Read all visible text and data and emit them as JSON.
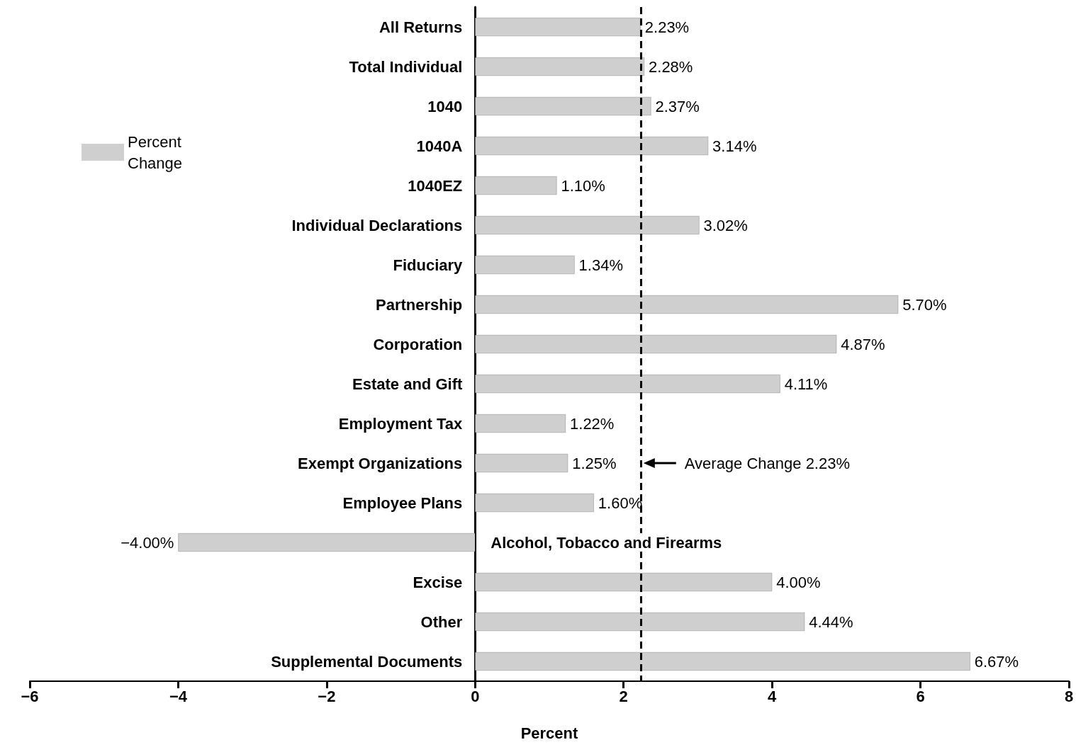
{
  "chart_data": {
    "type": "bar",
    "orientation": "horizontal",
    "xlabel": "Percent",
    "categories": [
      "All Returns",
      "Total Individual",
      "1040",
      "1040A",
      "1040EZ",
      "Individual Declarations",
      "Fiduciary",
      "Partnership",
      "Corporation",
      "Estate and Gift",
      "Employment Tax",
      "Exempt Organizations",
      "Employee Plans",
      "Alcohol, Tobacco and Firearms",
      "Excise",
      "Other",
      "Supplemental Documents"
    ],
    "series": [
      {
        "name": "Percent Change",
        "color": "#cfcfcf",
        "values": [
          2.23,
          2.28,
          2.37,
          3.14,
          1.1,
          3.02,
          1.34,
          5.7,
          4.87,
          4.11,
          1.22,
          1.25,
          1.6,
          -4.0,
          4.0,
          4.44,
          6.67
        ],
        "value_labels": [
          "2.23%",
          "2.28%",
          "2.37%",
          "3.14%",
          "1.10%",
          "3.02%",
          "1.34%",
          "5.70%",
          "4.87%",
          "4.11%",
          "1.22%",
          "1.25%",
          "1.60%",
          "−4.00%",
          "4.00%",
          "4.44%",
          "6.67%"
        ]
      }
    ],
    "xlim": [
      -6,
      8
    ],
    "xticks": [
      {
        "value": -6,
        "label": "−6"
      },
      {
        "value": -4,
        "label": "−4"
      },
      {
        "value": -2,
        "label": "−2"
      },
      0,
      2,
      4,
      6,
      8
    ],
    "ref_lines": [
      {
        "axis": "x",
        "value": 2.23,
        "label": "Average Change 2.23%",
        "line_style": "dashed",
        "color": "#000000"
      }
    ],
    "legend": "left",
    "grid": false
  }
}
